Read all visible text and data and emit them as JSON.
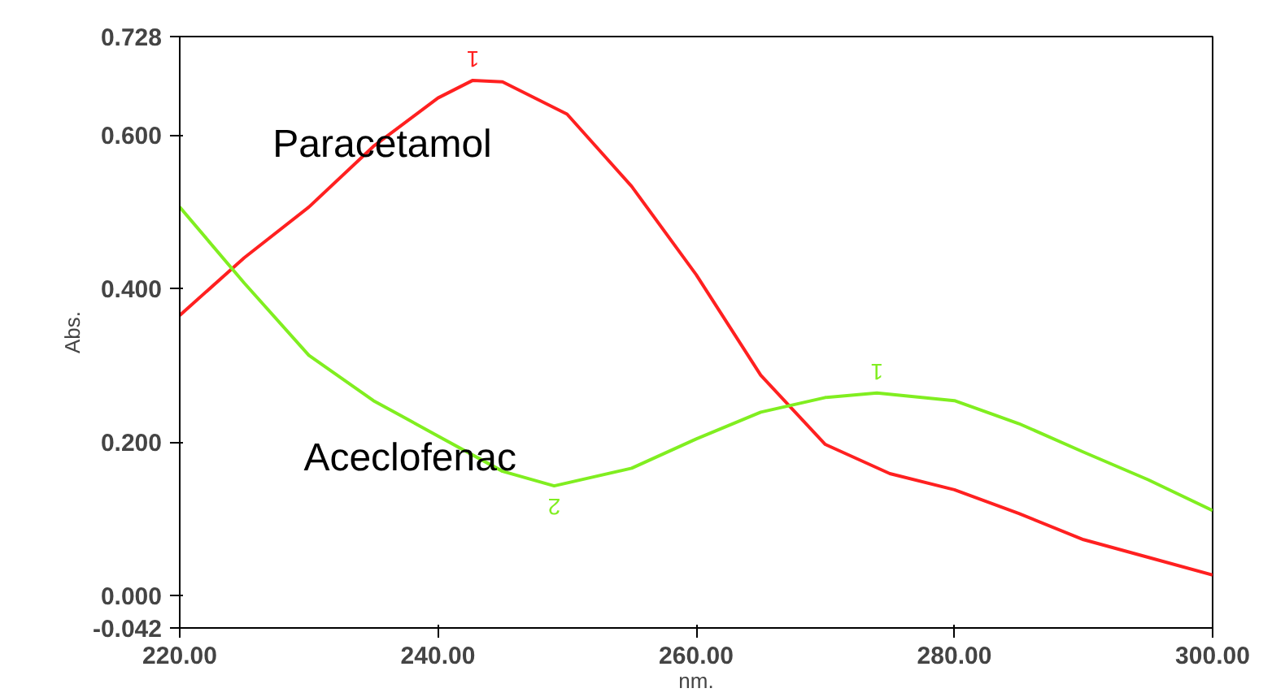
{
  "chart_data": {
    "type": "line",
    "xlabel": "nm.",
    "ylabel": "Abs.",
    "xlim": [
      220,
      300
    ],
    "xticks": [
      {
        "value": 220,
        "label": "220.00"
      },
      {
        "value": 240,
        "label": "240.00"
      },
      {
        "value": 260,
        "label": "260.00"
      },
      {
        "value": 280,
        "label": "280.00"
      },
      {
        "value": 300,
        "label": "300.00"
      }
    ],
    "ylim": [
      -0.042,
      0.728
    ],
    "yticks": [
      {
        "value": -0.042,
        "label": "-0.042"
      },
      {
        "value": 0,
        "label": "0.000"
      },
      {
        "value": 0.2,
        "label": "0.200"
      },
      {
        "value": 0.4,
        "label": "0.400"
      },
      {
        "value": 0.6,
        "label": "0.600"
      },
      {
        "value": 0.728,
        "label": "0.728"
      }
    ],
    "grid": false,
    "marker": "none",
    "line_style": "solid",
    "series": [
      {
        "name": "Paracetamol",
        "color": "#ff2020",
        "x": [
          220,
          225,
          230,
          235,
          240,
          242.7,
          245,
          250,
          255,
          260,
          265,
          270,
          275,
          280,
          285,
          290,
          295,
          300
        ],
        "values": [
          0.365,
          0.44,
          0.506,
          0.585,
          0.648,
          0.671,
          0.669,
          0.627,
          0.533,
          0.418,
          0.287,
          0.197,
          0.159,
          0.138,
          0.107,
          0.073,
          0.05,
          0.027
        ]
      },
      {
        "name": "Aceclofenac",
        "color": "#80ee20",
        "x": [
          220,
          225,
          230,
          235,
          240,
          245,
          249,
          255,
          260,
          265,
          270,
          274,
          280,
          285,
          290,
          295,
          300
        ],
        "values": [
          0.506,
          0.407,
          0.313,
          0.254,
          0.208,
          0.162,
          0.143,
          0.166,
          0.204,
          0.239,
          0.258,
          0.264,
          0.254,
          0.224,
          0.187,
          0.151,
          0.111
        ]
      }
    ],
    "annotations": [
      {
        "text": "1",
        "x": 242.7,
        "y": 0.671
      },
      {
        "text": "1",
        "x": 274,
        "y": 0.264
      },
      {
        "text": "2",
        "x": 249,
        "y": 0.143
      }
    ]
  }
}
